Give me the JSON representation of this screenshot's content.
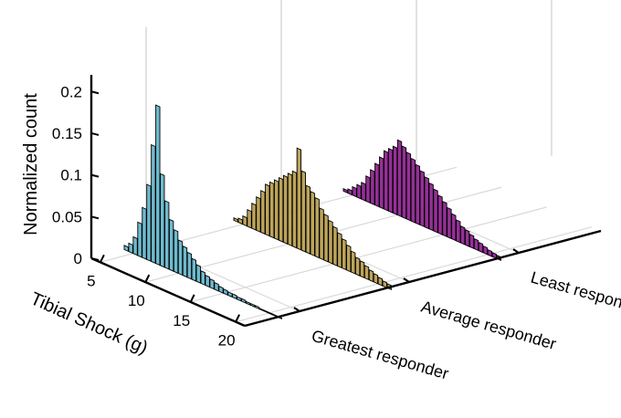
{
  "chart_data": {
    "type": "bar",
    "title": "",
    "ylabel": "Normalized count",
    "xlabel": "Tibial Shock (g)",
    "zlabel": "",
    "ylim": [
      0,
      0.2
    ],
    "yticks": [
      "0",
      "0.05",
      "0.1",
      "0.15",
      "0.2"
    ],
    "xticks": [
      "5",
      "10",
      "15",
      "20"
    ],
    "group_labels": [
      "Greatest responder",
      "Average responder",
      "Least responder"
    ],
    "grid": true,
    "series": [
      {
        "group": "Greatest responder",
        "color": "#5fb3c9",
        "x": [
          4,
          4.5,
          5,
          5.5,
          6,
          6.5,
          7,
          7.5,
          8,
          8.5,
          9,
          9.5,
          10,
          10.5,
          11,
          11.5,
          12,
          12.5,
          13,
          13.5,
          14,
          14.5,
          15,
          15.5,
          16,
          16.5,
          17,
          17.5,
          18,
          18.5,
          19,
          19.5,
          20,
          20.5,
          21
        ],
        "values": [
          0.005,
          0.01,
          0.02,
          0.04,
          0.06,
          0.09,
          0.14,
          0.19,
          0.11,
          0.08,
          0.06,
          0.05,
          0.04,
          0.035,
          0.03,
          0.025,
          0.02,
          0.015,
          0.012,
          0.01,
          0.008,
          0.006,
          0.005,
          0.004,
          0.004,
          0.003,
          0.003,
          0.002,
          0.002,
          0.002,
          0.001,
          0.001,
          0.001,
          0.001,
          0.001
        ]
      },
      {
        "group": "Average responder",
        "color": "#b59a48",
        "x": [
          4,
          4.5,
          5,
          5.5,
          6,
          6.5,
          7,
          7.5,
          8,
          8.5,
          9,
          9.5,
          10,
          10.5,
          11,
          11.5,
          12,
          12.5,
          13,
          13.5,
          14,
          14.5,
          15,
          15.5,
          16,
          16.5,
          17,
          17.5,
          18,
          18.5,
          19,
          19.5,
          20,
          20.5,
          21
        ],
        "values": [
          0.003,
          0.005,
          0.01,
          0.02,
          0.03,
          0.04,
          0.05,
          0.06,
          0.065,
          0.07,
          0.075,
          0.08,
          0.085,
          0.09,
          0.12,
          0.095,
          0.08,
          0.075,
          0.07,
          0.06,
          0.055,
          0.05,
          0.045,
          0.04,
          0.035,
          0.03,
          0.025,
          0.02,
          0.018,
          0.015,
          0.012,
          0.01,
          0.008,
          0.006,
          0.005
        ]
      },
      {
        "group": "Least responder",
        "color": "#8a1a8c",
        "x": [
          4,
          4.5,
          5,
          5.5,
          6,
          6.5,
          7,
          7.5,
          8,
          8.5,
          9,
          9.5,
          10,
          10.5,
          11,
          11.5,
          12,
          12.5,
          13,
          13.5,
          14,
          14.5,
          15,
          15.5,
          16,
          16.5,
          17,
          17.5,
          18,
          18.5,
          19,
          19.5,
          20,
          20.5,
          21
        ],
        "values": [
          0.003,
          0.005,
          0.01,
          0.015,
          0.02,
          0.03,
          0.04,
          0.05,
          0.06,
          0.07,
          0.075,
          0.08,
          0.09,
          0.085,
          0.08,
          0.075,
          0.07,
          0.065,
          0.06,
          0.055,
          0.05,
          0.045,
          0.04,
          0.035,
          0.03,
          0.025,
          0.02,
          0.018,
          0.015,
          0.012,
          0.01,
          0.008,
          0.006,
          0.005,
          0.004
        ]
      }
    ]
  }
}
